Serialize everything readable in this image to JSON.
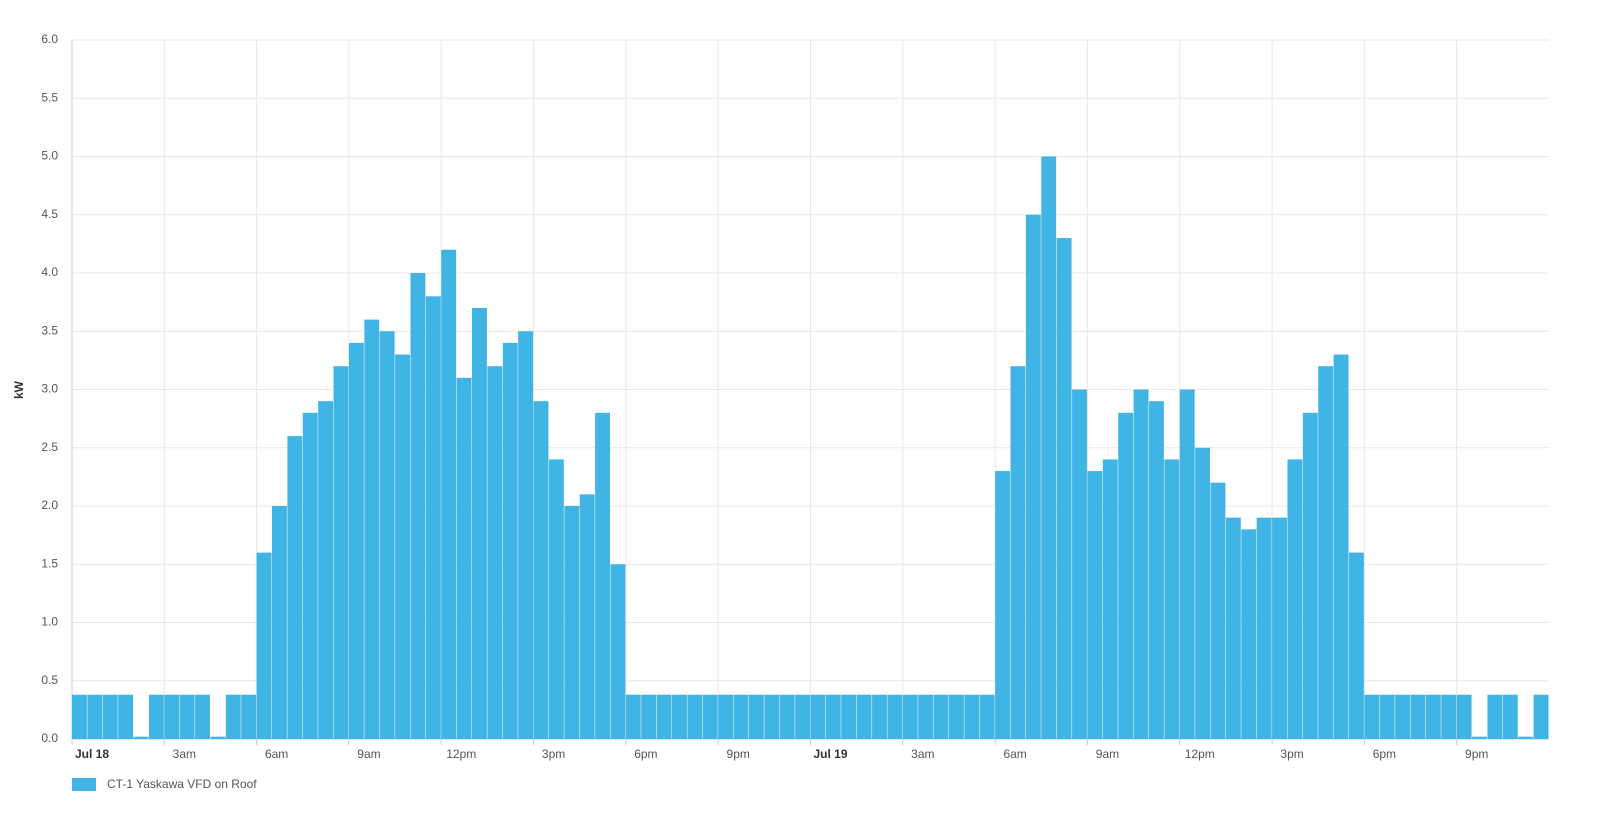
{
  "chart_data": {
    "type": "bar",
    "y_label": "kW",
    "x": [
      0,
      0.5,
      1,
      1.5,
      2,
      2.5,
      3,
      3.5,
      4,
      4.5,
      5,
      5.5,
      6,
      6.5,
      7,
      7.5,
      8,
      8.5,
      9,
      9.5,
      10,
      10.5,
      11,
      11.5,
      12,
      12.5,
      13,
      13.5,
      14,
      14.5,
      15,
      15.5,
      16,
      16.5,
      17,
      17.5,
      18,
      18.5,
      19,
      19.5,
      20,
      20.5,
      21,
      21.5,
      22,
      22.5,
      23,
      23.5,
      24,
      24.5,
      25,
      25.5,
      26,
      26.5,
      27,
      27.5,
      28,
      28.5,
      29,
      29.5,
      30,
      30.5,
      31,
      31.5,
      32,
      32.5,
      33,
      33.5,
      34,
      34.5,
      35,
      35.5,
      36,
      36.5,
      37,
      37.5,
      38,
      38.5,
      39,
      39.5,
      40,
      40.5,
      41,
      41.5,
      42,
      42.5,
      43,
      43.5,
      44,
      44.5,
      45,
      45.5,
      46,
      46.5,
      47,
      47.5
    ],
    "series": [
      {
        "name": "CT-1 Yaskawa VFD on Roof",
        "color": "#40b4e5",
        "values": [
          0.38,
          0.38,
          0.38,
          0.38,
          0.02,
          0.38,
          0.38,
          0.38,
          0.38,
          0.02,
          0.38,
          0.38,
          1.6,
          2.0,
          2.6,
          2.8,
          2.9,
          3.2,
          3.4,
          3.6,
          3.5,
          3.3,
          4.0,
          3.8,
          4.2,
          3.1,
          3.7,
          3.2,
          3.4,
          3.5,
          2.9,
          2.4,
          2.0,
          2.1,
          2.8,
          1.5,
          0.38,
          0.38,
          0.38,
          0.38,
          0.38,
          0.38,
          0.38,
          0.38,
          0.38,
          0.38,
          0.38,
          0.38,
          0.38,
          0.38,
          0.38,
          0.38,
          0.38,
          0.38,
          0.38,
          0.38,
          0.38,
          0.38,
          0.38,
          0.38,
          2.3,
          3.2,
          4.5,
          5.0,
          4.3,
          3.0,
          2.3,
          2.4,
          2.8,
          3.0,
          2.9,
          2.4,
          3.0,
          2.5,
          2.2,
          1.9,
          1.8,
          1.9,
          1.9,
          2.4,
          2.8,
          3.2,
          3.3,
          1.6,
          0.38,
          0.38,
          0.38,
          0.38,
          0.38,
          0.38,
          0.38,
          0.02,
          0.38,
          0.38,
          0.02,
          0.38
        ]
      }
    ],
    "xlim": [
      0,
      48
    ],
    "xticks": [
      {
        "value": 0,
        "label": "Jul 18"
      },
      {
        "value": 3,
        "label": "3am"
      },
      {
        "value": 6,
        "label": "6am"
      },
      {
        "value": 9,
        "label": "9am"
      },
      {
        "value": 12,
        "label": "12pm"
      },
      {
        "value": 15,
        "label": "3pm"
      },
      {
        "value": 18,
        "label": "6pm"
      },
      {
        "value": 21,
        "label": "9pm"
      },
      {
        "value": 24,
        "label": "Jul 19"
      },
      {
        "value": 27,
        "label": "3am"
      },
      {
        "value": 30,
        "label": "6am"
      },
      {
        "value": 33,
        "label": "9am"
      },
      {
        "value": 36,
        "label": "12pm"
      },
      {
        "value": 39,
        "label": "3pm"
      },
      {
        "value": 42,
        "label": "6pm"
      },
      {
        "value": 45,
        "label": "9pm"
      }
    ],
    "ylim": [
      0,
      6
    ],
    "yticks": [
      {
        "value": 0,
        "label": "0.0"
      },
      0.5,
      {
        "value": 1,
        "label": "1.0"
      },
      1.5,
      {
        "value": 2,
        "label": "2.0"
      },
      2.5,
      {
        "value": 3,
        "label": "3.0"
      },
      3.5,
      {
        "value": 4,
        "label": "4.0"
      },
      4.5,
      {
        "value": 5,
        "label": "5.0"
      },
      5.5,
      {
        "value": 6,
        "label": "6.0"
      }
    ],
    "grid": true
  }
}
